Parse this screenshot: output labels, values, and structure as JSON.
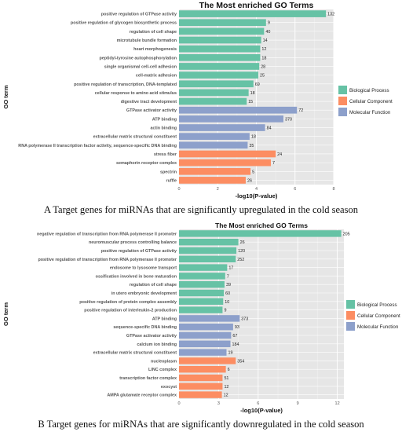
{
  "charts": [
    {
      "type": "bar",
      "orientation": "horizontal",
      "title": "The Most enriched GO Terms",
      "xlabel": "-log10(P-value)",
      "ylabel": "GO term",
      "xlim": [
        0,
        8
      ],
      "xticks": [
        0,
        2,
        4,
        6,
        8
      ],
      "grid": true,
      "legend_position": "right",
      "caption": "A Target genes for miRNAs that are significantly upregulated in the cold season",
      "categories_legend": [
        {
          "name": "Biological Process",
          "color": "#66c2a5"
        },
        {
          "name": "Cellular Component",
          "color": "#fc8d62"
        },
        {
          "name": "Molecular Function",
          "color": "#8da0cb"
        }
      ],
      "terms": [
        {
          "label": "positive regulation of GTPase activity",
          "value": 7.6,
          "count": "132",
          "category": 0
        },
        {
          "label": "positive regulation of glycogen biosynthetic process",
          "value": 4.5,
          "count": "9",
          "category": 0
        },
        {
          "label": "regulation of cell shape",
          "value": 4.4,
          "count": "40",
          "category": 0
        },
        {
          "label": "microtubule bundle formation",
          "value": 4.25,
          "count": "14",
          "category": 0
        },
        {
          "label": "heart morphogenesis",
          "value": 4.2,
          "count": "12",
          "category": 0
        },
        {
          "label": "peptidyl-tyrosine autophosphorylation",
          "value": 4.2,
          "count": "18",
          "category": 0
        },
        {
          "label": "single organismal cell-cell adhesion",
          "value": 4.15,
          "count": "28",
          "category": 0
        },
        {
          "label": "cell-matrix adhesion",
          "value": 4.1,
          "count": "25",
          "category": 0
        },
        {
          "label": "positive regulation of transcription, DNA-templated",
          "value": 3.85,
          "count": "69",
          "category": 0
        },
        {
          "label": "cellular response to amino acid stimulus",
          "value": 3.6,
          "count": "18",
          "category": 0
        },
        {
          "label": "digestive tract development",
          "value": 3.5,
          "count": "15",
          "category": 0
        },
        {
          "label": "GTPase activator activity",
          "value": 6.1,
          "count": "72",
          "category": 2
        },
        {
          "label": "ATP binding",
          "value": 5.4,
          "count": "370",
          "category": 2
        },
        {
          "label": "actin binding",
          "value": 4.45,
          "count": "84",
          "category": 2
        },
        {
          "label": "extracellular matrix structural constituent",
          "value": 3.65,
          "count": "18",
          "category": 2
        },
        {
          "label": "RNA polymerase II transcription factor activity, sequence-specific DNA binding",
          "value": 3.55,
          "count": "35",
          "category": 2
        },
        {
          "label": "stress fiber",
          "value": 5.0,
          "count": "24",
          "category": 1
        },
        {
          "label": "semaphorin receptor complex",
          "value": 4.75,
          "count": "7",
          "category": 1
        },
        {
          "label": "spectrin",
          "value": 3.7,
          "count": "5",
          "category": 1
        },
        {
          "label": "ruffle",
          "value": 3.45,
          "count": "26",
          "category": 1
        }
      ]
    },
    {
      "type": "bar",
      "orientation": "horizontal",
      "title": "The Most enriched GO Terms",
      "xlabel": "-log10(P-value)",
      "ylabel": "GO term",
      "xlim": [
        0,
        12.5
      ],
      "xticks": [
        0,
        3,
        6,
        9,
        12
      ],
      "grid": true,
      "legend_position": "right",
      "caption": "B Target genes for miRNAs that are significantly downregulated in the cold season",
      "categories_legend": [
        {
          "name": "Biological Process",
          "color": "#66c2a5"
        },
        {
          "name": "Cellular Component",
          "color": "#fc8d62"
        },
        {
          "name": "Molecular Function",
          "color": "#8da0cb"
        }
      ],
      "terms": [
        {
          "label": "negative regulation of transcription from RNA polymerase II promoter",
          "value": 12.3,
          "count": "205",
          "category": 0
        },
        {
          "label": "neuromuscular process controlling balance",
          "value": 4.5,
          "count": "26",
          "category": 0
        },
        {
          "label": "positive regulation of GTPase activity",
          "value": 4.35,
          "count": "120",
          "category": 0
        },
        {
          "label": "positive regulation of transcription from RNA polymerase II promoter",
          "value": 4.3,
          "count": "252",
          "category": 0
        },
        {
          "label": "endosome to lysosome transport",
          "value": 3.65,
          "count": "17",
          "category": 0
        },
        {
          "label": "ossification involved in bone maturation",
          "value": 3.5,
          "count": "7",
          "category": 0
        },
        {
          "label": "regulation of cell shape",
          "value": 3.45,
          "count": "39",
          "category": 0
        },
        {
          "label": "in utero embryonic development",
          "value": 3.4,
          "count": "60",
          "category": 0
        },
        {
          "label": "positive regulation of protein complex assembly",
          "value": 3.35,
          "count": "10",
          "category": 0
        },
        {
          "label": "positive regulation of interleukin-2 production",
          "value": 3.3,
          "count": "9",
          "category": 0
        },
        {
          "label": "ATP binding",
          "value": 4.6,
          "count": "373",
          "category": 2
        },
        {
          "label": "sequence-specific DNA binding",
          "value": 4.1,
          "count": "93",
          "category": 2
        },
        {
          "label": "GTPase activator activity",
          "value": 3.95,
          "count": "67",
          "category": 2
        },
        {
          "label": "calcium ion binding",
          "value": 3.9,
          "count": "184",
          "category": 2
        },
        {
          "label": "extracellular matrix structural constituent",
          "value": 3.6,
          "count": "19",
          "category": 2
        },
        {
          "label": "nucleoplasm",
          "value": 4.3,
          "count": "354",
          "category": 1
        },
        {
          "label": "LINC complex",
          "value": 3.55,
          "count": "6",
          "category": 1
        },
        {
          "label": "transcription factor complex",
          "value": 3.3,
          "count": "51",
          "category": 1
        },
        {
          "label": "exocyst",
          "value": 3.3,
          "count": "12",
          "category": 1
        },
        {
          "label": "AMPA glutamate receptor complex",
          "value": 3.25,
          "count": "12",
          "category": 1
        }
      ]
    }
  ]
}
